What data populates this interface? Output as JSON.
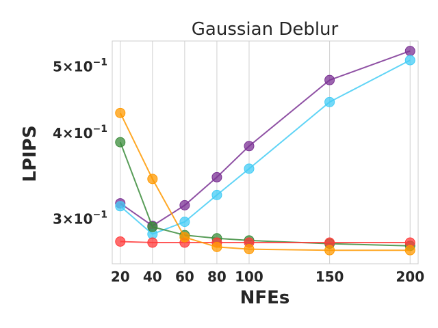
{
  "chart_data": {
    "type": "line",
    "title": "Gaussian Deblur",
    "xlabel": "NFEs",
    "ylabel": "LPIPS",
    "x": [
      20,
      40,
      60,
      80,
      100,
      150,
      200
    ],
    "x_tick_labels": [
      "20",
      "40",
      "60",
      "80",
      "100",
      "150",
      "200"
    ],
    "xlim": [
      15,
      205
    ],
    "yscale": "log",
    "ylim": [
      0.258,
      0.545
    ],
    "y_ticks": [
      {
        "value": 0.3,
        "mantissa": "3×10",
        "exponent": "−1"
      },
      {
        "value": 0.4,
        "mantissa": "4×10",
        "exponent": "−1"
      },
      {
        "value": 0.5,
        "mantissa": "5×10",
        "exponent": "−1"
      }
    ],
    "grid": true,
    "series": [
      {
        "color": "#7b3294",
        "values": [
          0.316,
          0.293,
          0.314,
          0.345,
          0.383,
          0.478,
          0.527
        ]
      },
      {
        "color": "#44ccf5",
        "values": [
          0.313,
          0.285,
          0.297,
          0.325,
          0.355,
          0.444,
          0.511
        ]
      },
      {
        "color": "#3b8c3b",
        "values": [
          0.388,
          0.292,
          0.284,
          0.281,
          0.279,
          0.276,
          0.274
        ]
      },
      {
        "color": "#ff3b3b",
        "values": [
          0.278,
          0.277,
          0.277,
          0.277,
          0.277,
          0.277,
          0.277
        ]
      },
      {
        "color": "#ff9900",
        "values": [
          0.428,
          0.343,
          0.282,
          0.273,
          0.271,
          0.27,
          0.27
        ]
      }
    ]
  }
}
